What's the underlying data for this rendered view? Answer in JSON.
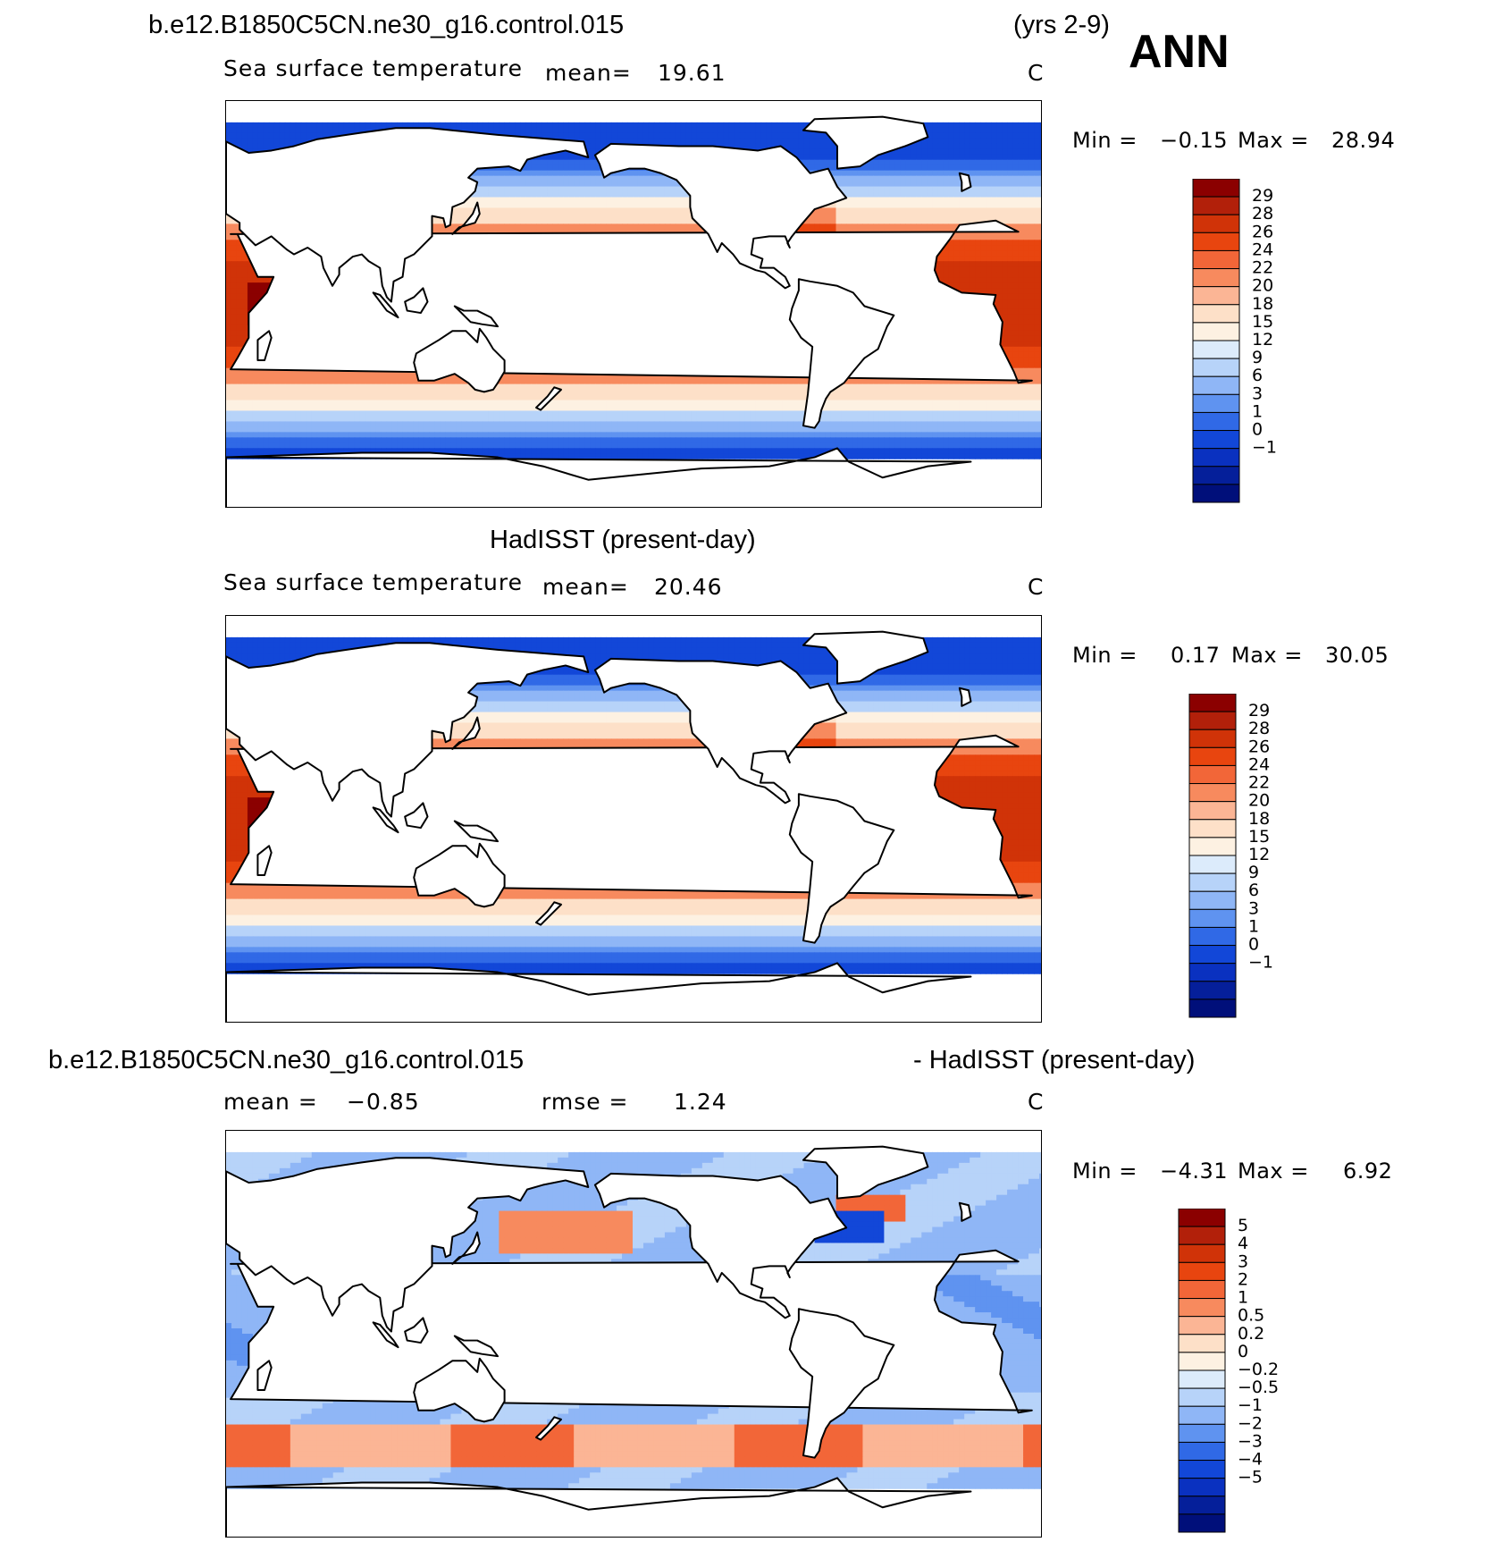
{
  "figure": {
    "season": "ANN",
    "years": "(yrs 2-9)"
  },
  "panels": [
    {
      "id": "model",
      "header_left": "b.e12.B1850C5CN.ne30_g16.control.015",
      "field_label": "Sea surface temperature",
      "mean_label": "mean=",
      "mean_value": "19.61",
      "units": "C",
      "min_label": "Min =",
      "min_value": "−0.15",
      "max_label": "Max =",
      "max_value": "28.94",
      "colorbar": {
        "ticks": [
          "29",
          "28",
          "26",
          "24",
          "22",
          "20",
          "18",
          "15",
          "12",
          "9",
          "6",
          "3",
          "1",
          "0",
          "−1"
        ],
        "colors": [
          "#8b0000",
          "#b2200a",
          "#d03308",
          "#e8450f",
          "#f26638",
          "#f78a5e",
          "#fbb595",
          "#fde0c8",
          "#fdf1e2",
          "#dcebfb",
          "#b7d3f9",
          "#8fb6f6",
          "#5f93f0",
          "#3069e6",
          "#1247d8",
          "#0a31c0",
          "#051f9a",
          "#000f7a"
        ]
      },
      "field_type": "sst"
    },
    {
      "id": "obs",
      "header_center": "HadISST (present-day)",
      "field_label": "Sea surface temperature",
      "mean_label": "mean=",
      "mean_value": "20.46",
      "units": "C",
      "min_label": "Min =",
      "min_value": "0.17",
      "max_label": "Max =",
      "max_value": "30.05",
      "colorbar": {
        "ticks": [
          "29",
          "28",
          "26",
          "24",
          "22",
          "20",
          "18",
          "15",
          "12",
          "9",
          "6",
          "3",
          "1",
          "0",
          "−1"
        ],
        "colors": [
          "#8b0000",
          "#b2200a",
          "#d03308",
          "#e8450f",
          "#f26638",
          "#f78a5e",
          "#fbb595",
          "#fde0c8",
          "#fdf1e2",
          "#dcebfb",
          "#b7d3f9",
          "#8fb6f6",
          "#5f93f0",
          "#3069e6",
          "#1247d8",
          "#0a31c0",
          "#051f9a",
          "#000f7a"
        ]
      },
      "field_type": "sst"
    },
    {
      "id": "diff",
      "header_left": "b.e12.B1850C5CN.ne30_g16.control.015",
      "header_right": "- HadISST (present-day)",
      "mean_label": "mean =",
      "mean_value": "−0.85",
      "rmse_label": "rmse =",
      "rmse_value": "1.24",
      "units": "C",
      "min_label": "Min =",
      "min_value": "−4.31",
      "max_label": "Max =",
      "max_value": "6.92",
      "colorbar": {
        "ticks": [
          "5",
          "4",
          "3",
          "2",
          "1",
          "0.5",
          "0.2",
          "0",
          "−0.2",
          "−0.5",
          "−1",
          "−2",
          "−3",
          "−4",
          "−5"
        ],
        "colors": [
          "#8b0000",
          "#b2200a",
          "#d03308",
          "#e8450f",
          "#f26638",
          "#f78a5e",
          "#fbb595",
          "#fde0c8",
          "#fdf1e2",
          "#dcebfb",
          "#b7d3f9",
          "#8fb6f6",
          "#5f93f0",
          "#3069e6",
          "#1247d8",
          "#0a31c0",
          "#051f9a",
          "#000f7a"
        ]
      },
      "field_type": "diff"
    }
  ]
}
